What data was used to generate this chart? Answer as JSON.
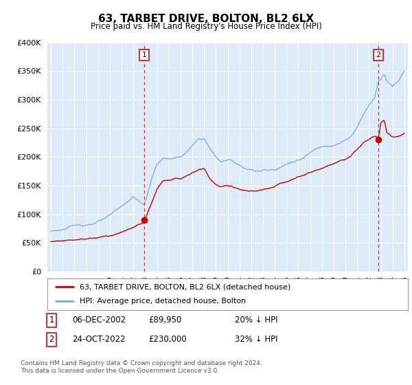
{
  "title": "63, TARBET DRIVE, BOLTON, BL2 6LX",
  "subtitle": "Price paid vs. HM Land Registry's House Price Index (HPI)",
  "footer1": "Contains HM Land Registry data © Crown copyright and database right 2024.",
  "footer2": "This data is licensed under the Open Government Licence v3.0.",
  "legend_line1": "63, TARBET DRIVE, BOLTON, BL2 6LX (detached house)",
  "legend_line2": "HPI: Average price, detached house, Bolton",
  "sale1_date": "06-DEC-2002",
  "sale1_price": 89950,
  "sale1_label": "20% ↓ HPI",
  "sale2_date": "24-OCT-2022",
  "sale2_price": 230000,
  "sale2_label": "32% ↓ HPI",
  "sale1_x": 2002.92,
  "sale2_x": 2022.8,
  "ylim": [
    0,
    400000
  ],
  "xlim": [
    1994.7,
    2025.3
  ],
  "bg_color": "#ddeaf8",
  "red_color": "#cc0000",
  "blue_color": "#7aaad4",
  "grid_color": "#c8d8ec",
  "title_fontsize": 11,
  "subtitle_fontsize": 9
}
